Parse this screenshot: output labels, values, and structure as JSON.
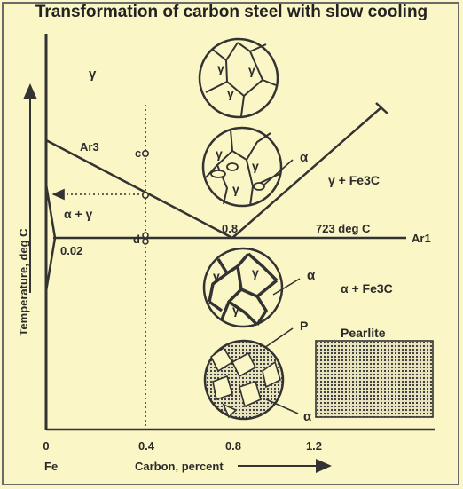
{
  "title": "Transformation of carbon steel with slow cooling",
  "axes": {
    "y_label": "Temperature, deg C",
    "x_label": "Carbon, percent",
    "x_origin_label": "Fe",
    "x_ticks": [
      "0",
      "0.4",
      "0.8",
      "1.2"
    ]
  },
  "regions": {
    "gamma": "γ",
    "alpha_gamma": "α + γ",
    "gamma_fe3c": "γ + Fe3C",
    "alpha_fe3c": "α + Fe3C"
  },
  "lines": {
    "ar3": "Ar3",
    "ar1": "Ar1",
    "ar1_temp": "723 deg C",
    "eutectoid": "0.8",
    "ferrite_limit": "0.02"
  },
  "points": {
    "c": "c",
    "d": "d"
  },
  "micro": {
    "gamma": "γ",
    "alpha": "α",
    "pearlite_marker": "P",
    "pearlite_box": "Pearlite"
  },
  "colors": {
    "background": "#fbf6c5",
    "ink": "#333333"
  }
}
